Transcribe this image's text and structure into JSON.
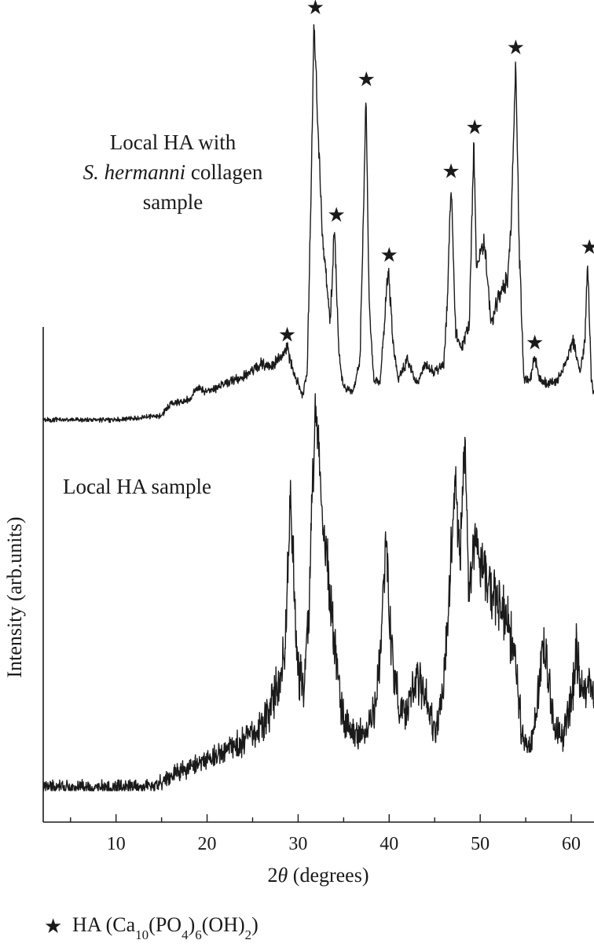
{
  "chart_data": {
    "type": "line",
    "title": "",
    "xlabel": "2θ (degrees)",
    "xlabel_prefix": "2",
    "xlabel_symbol": "θ",
    "xlabel_suffix": " (degrees)",
    "ylabel": "Intensity (arb.units)",
    "xlim": [
      2,
      62.5
    ],
    "x_ticks": [
      10,
      20,
      30,
      40,
      50,
      60
    ],
    "x_minor_ticks": [
      5,
      15,
      25,
      35,
      45,
      55
    ],
    "grid": false,
    "y_tick_labels": false,
    "series": [
      {
        "name": "Local HA with S. hermanni collagen sample",
        "label_lines": [
          "Local HA with",
          "S. hermanni",
          " collagen",
          "sample"
        ],
        "baseline": 0.03,
        "noise": 0.012,
        "points": [
          [
            2,
            0
          ],
          [
            10,
            0
          ],
          [
            15,
            0.01
          ],
          [
            16,
            0.04
          ],
          [
            18,
            0.05
          ],
          [
            19,
            0.08
          ],
          [
            20,
            0.07
          ],
          [
            22,
            0.09
          ],
          [
            24,
            0.11
          ],
          [
            26,
            0.14
          ],
          [
            27,
            0.13
          ],
          [
            28,
            0.16
          ],
          [
            28.8,
            0.18
          ],
          [
            29.5,
            0.12
          ],
          [
            30.5,
            0.06
          ],
          [
            31,
            0.12
          ],
          [
            31.4,
            0.55
          ],
          [
            31.75,
            1.0
          ],
          [
            32.2,
            0.72
          ],
          [
            32.7,
            0.45
          ],
          [
            33.1,
            0.36
          ],
          [
            33.5,
            0.24
          ],
          [
            34,
            0.48
          ],
          [
            34.5,
            0.16
          ],
          [
            35,
            0.08
          ],
          [
            36,
            0.07
          ],
          [
            36.8,
            0.15
          ],
          [
            37.2,
            0.55
          ],
          [
            37.45,
            0.82
          ],
          [
            37.8,
            0.3
          ],
          [
            38.3,
            0.1
          ],
          [
            39,
            0.09
          ],
          [
            39.5,
            0.25
          ],
          [
            39.9,
            0.38
          ],
          [
            40.4,
            0.2
          ],
          [
            41,
            0.1
          ],
          [
            42,
            0.15
          ],
          [
            43,
            0.09
          ],
          [
            44,
            0.14
          ],
          [
            45,
            0.12
          ],
          [
            46,
            0.14
          ],
          [
            46.4,
            0.3
          ],
          [
            46.8,
            0.59
          ],
          [
            47.3,
            0.22
          ],
          [
            48,
            0.18
          ],
          [
            48.8,
            0.24
          ],
          [
            49.3,
            0.7
          ],
          [
            49.6,
            0.38
          ],
          [
            50.4,
            0.45
          ],
          [
            51.2,
            0.25
          ],
          [
            52,
            0.3
          ],
          [
            53,
            0.35
          ],
          [
            53.4,
            0.5
          ],
          [
            53.9,
            0.9
          ],
          [
            54.3,
            0.42
          ],
          [
            54.8,
            0.1
          ],
          [
            55.5,
            0.1
          ],
          [
            56,
            0.16
          ],
          [
            56.5,
            0.1
          ],
          [
            57.5,
            0.09
          ],
          [
            58.5,
            0.1
          ],
          [
            59.5,
            0.15
          ],
          [
            60.2,
            0.2
          ],
          [
            61,
            0.12
          ],
          [
            61.5,
            0.2
          ],
          [
            61.8,
            0.4
          ],
          [
            62.2,
            0.1
          ],
          [
            62.5,
            0.06
          ]
        ]
      },
      {
        "name": "Local HA sample",
        "label_lines": [
          "Local HA sample"
        ],
        "baseline": 0.02,
        "noise": 0.035,
        "points": [
          [
            2,
            0
          ],
          [
            12,
            0
          ],
          [
            15,
            0.01
          ],
          [
            17,
            0.04
          ],
          [
            19,
            0.06
          ],
          [
            21,
            0.08
          ],
          [
            23,
            0.1
          ],
          [
            25,
            0.13
          ],
          [
            26,
            0.16
          ],
          [
            27,
            0.2
          ],
          [
            28,
            0.28
          ],
          [
            28.6,
            0.35
          ],
          [
            29.1,
            0.75
          ],
          [
            29.5,
            0.55
          ],
          [
            30,
            0.3
          ],
          [
            30.6,
            0.26
          ],
          [
            31.2,
            0.45
          ],
          [
            31.9,
            1.0
          ],
          [
            32.6,
            0.7
          ],
          [
            33.2,
            0.58
          ],
          [
            34,
            0.38
          ],
          [
            34.8,
            0.2
          ],
          [
            35.5,
            0.15
          ],
          [
            36.5,
            0.13
          ],
          [
            37.5,
            0.14
          ],
          [
            38.5,
            0.2
          ],
          [
            39.3,
            0.45
          ],
          [
            39.7,
            0.65
          ],
          [
            40.2,
            0.35
          ],
          [
            41,
            0.22
          ],
          [
            42,
            0.18
          ],
          [
            43,
            0.3
          ],
          [
            44,
            0.22
          ],
          [
            45,
            0.14
          ],
          [
            46,
            0.26
          ],
          [
            46.6,
            0.48
          ],
          [
            47.2,
            0.78
          ],
          [
            47.8,
            0.6
          ],
          [
            48.3,
            0.88
          ],
          [
            48.8,
            0.5
          ],
          [
            49.4,
            0.65
          ],
          [
            50,
            0.58
          ],
          [
            51,
            0.52
          ],
          [
            52,
            0.46
          ],
          [
            53,
            0.42
          ],
          [
            53.8,
            0.34
          ],
          [
            54.5,
            0.15
          ],
          [
            55.2,
            0.1
          ],
          [
            56,
            0.16
          ],
          [
            57,
            0.38
          ],
          [
            57.5,
            0.28
          ],
          [
            58.2,
            0.14
          ],
          [
            59,
            0.12
          ],
          [
            60,
            0.22
          ],
          [
            60.6,
            0.34
          ],
          [
            61.2,
            0.24
          ],
          [
            62,
            0.28
          ],
          [
            62.5,
            0.22
          ]
        ]
      }
    ],
    "markers": {
      "symbol": "★",
      "series": 0,
      "positions": [
        28.8,
        31.9,
        34.2,
        37.5,
        40.0,
        46.8,
        49.4,
        53.9,
        56.0,
        62.0
      ]
    },
    "legend": {
      "placement": "bottom-left",
      "symbol": "★",
      "text_html": "HA (Ca<tspan baseline-shift=\"sub\" font-size=\"17\">10</tspan>(PO<tspan baseline-shift=\"sub\" font-size=\"17\">4</tspan>)<tspan baseline-shift=\"sub\" font-size=\"17\">6</tspan>(OH)<tspan baseline-shift=\"sub\" font-size=\"17\">2</tspan>)",
      "label": "HA (Ca10(PO4)6(OH)2)"
    }
  }
}
